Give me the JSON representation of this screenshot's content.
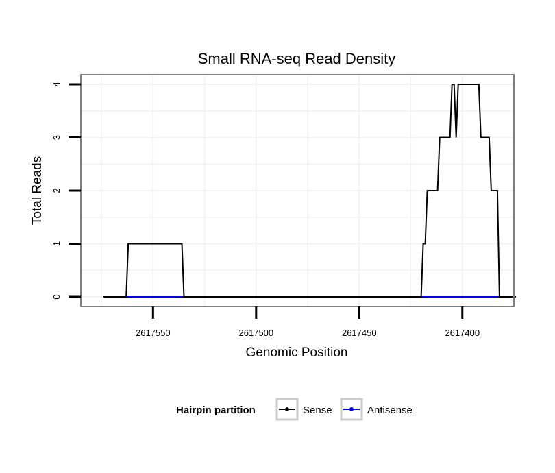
{
  "chart_data": {
    "type": "line",
    "title": "Small RNA-seq Read Density",
    "xlabel": "Genomic Position",
    "ylabel": "Total Reads",
    "x_reversed": true,
    "xlim": [
      2617585,
      2617375
    ],
    "ylim": [
      -0.18,
      4.18
    ],
    "x_ticks": [
      2617550,
      2617500,
      2617450,
      2617400
    ],
    "x_tick_labels": [
      "2617550",
      "2617500",
      "2617450",
      "2617400"
    ],
    "y_ticks": [
      0,
      1,
      2,
      3,
      4
    ],
    "y_tick_labels": [
      "0",
      "1",
      "2",
      "3",
      "4"
    ],
    "grid": true,
    "legend": {
      "title": "Hairpin partition",
      "position": "bottom",
      "entries": [
        "Sense",
        "Antisense"
      ]
    },
    "series": [
      {
        "name": "Sense",
        "color": "#000000",
        "x": [
          2617574,
          2617563,
          2617562,
          2617536,
          2617535,
          2617420,
          2617419,
          2617418,
          2617417,
          2617412,
          2617411,
          2617406,
          2617405,
          2617404,
          2617403,
          2617402,
          2617401,
          2617392,
          2617391,
          2617387,
          2617386,
          2617383,
          2617382,
          2617379,
          2617374
        ],
        "y": [
          0,
          0,
          1,
          1,
          0,
          0,
          1,
          1,
          2,
          2,
          3,
          3,
          4,
          4,
          3,
          4,
          4,
          4,
          3,
          3,
          2,
          2,
          0,
          0,
          0
        ]
      },
      {
        "name": "Antisense",
        "color": "#0000ff",
        "x": [
          2617563,
          2617535,
          2617419,
          2617379
        ],
        "y": [
          0,
          0,
          0,
          0
        ]
      }
    ]
  }
}
